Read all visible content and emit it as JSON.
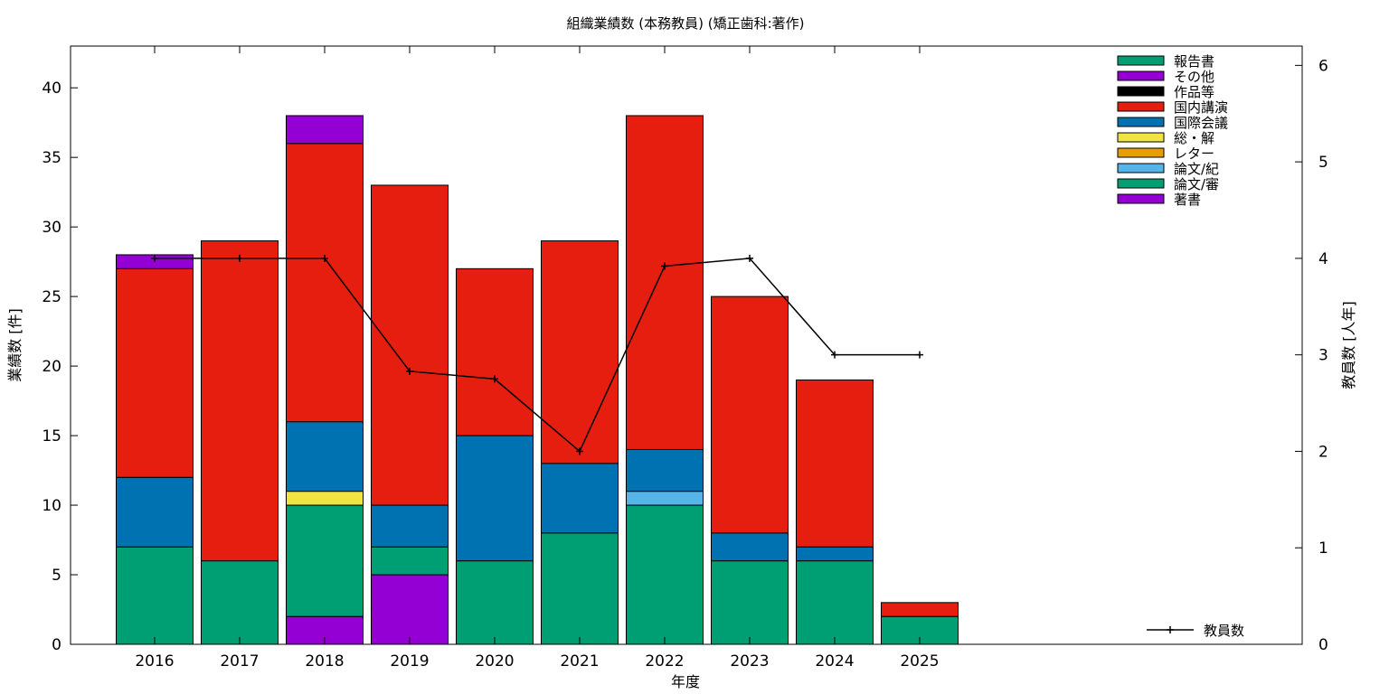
{
  "chart_data": {
    "type": "bar",
    "stacked": true,
    "title": "組織業績数 (本務教員) (矯正歯科:著作)",
    "xlabel": "年度",
    "ylabel": "業績数 [件]",
    "y2label": "教員数 [人年]",
    "ylim": [
      0,
      43
    ],
    "y2lim": [
      0,
      6.2
    ],
    "yticks": [
      0,
      5,
      10,
      15,
      20,
      25,
      30,
      35,
      40
    ],
    "y2ticks": [
      0,
      1,
      2,
      3,
      4,
      5,
      6
    ],
    "categories": [
      "2016",
      "2017",
      "2018",
      "2019",
      "2020",
      "2021",
      "2022",
      "2023",
      "2024",
      "2025"
    ],
    "series": [
      {
        "name": "著書",
        "color": "#9400d3",
        "values": [
          0,
          0,
          2,
          5,
          0,
          0,
          0,
          0,
          0,
          0
        ]
      },
      {
        "name": "論文/審",
        "color": "#009e73",
        "values": [
          7,
          6,
          8,
          2,
          6,
          8,
          10,
          6,
          6,
          2
        ]
      },
      {
        "name": "論文/紀",
        "color": "#56b4e9",
        "values": [
          0,
          0,
          0,
          0,
          0,
          0,
          1,
          0,
          0,
          0
        ]
      },
      {
        "name": "レター",
        "color": "#e69f00",
        "values": [
          0,
          0,
          0,
          0,
          0,
          0,
          0,
          0,
          0,
          0
        ]
      },
      {
        "name": "総・解",
        "color": "#f0e442",
        "values": [
          0,
          0,
          1,
          0,
          0,
          0,
          0,
          0,
          0,
          0
        ]
      },
      {
        "name": "国際会議",
        "color": "#0072b2",
        "values": [
          5,
          0,
          5,
          3,
          9,
          5,
          3,
          2,
          1,
          0
        ]
      },
      {
        "name": "国内講演",
        "color": "#e51e10",
        "values": [
          15,
          23,
          20,
          23,
          12,
          16,
          24,
          17,
          12,
          1
        ]
      },
      {
        "name": "作品等",
        "color": "#000000",
        "values": [
          0,
          0,
          0,
          0,
          0,
          0,
          0,
          0,
          0,
          0
        ]
      },
      {
        "name": "その他",
        "color": "#9400d3",
        "values": [
          1,
          0,
          2,
          0,
          0,
          0,
          0,
          0,
          0,
          0
        ]
      },
      {
        "name": "報告書",
        "color": "#009e73",
        "values": [
          0,
          0,
          0,
          0,
          0,
          0,
          0,
          0,
          0,
          0
        ]
      }
    ],
    "line_series": {
      "name": "教員数",
      "color": "#000000",
      "values": [
        4,
        4,
        4,
        2.83,
        2.75,
        2,
        3.92,
        4,
        3,
        3
      ]
    },
    "legend_position": "top-right"
  }
}
